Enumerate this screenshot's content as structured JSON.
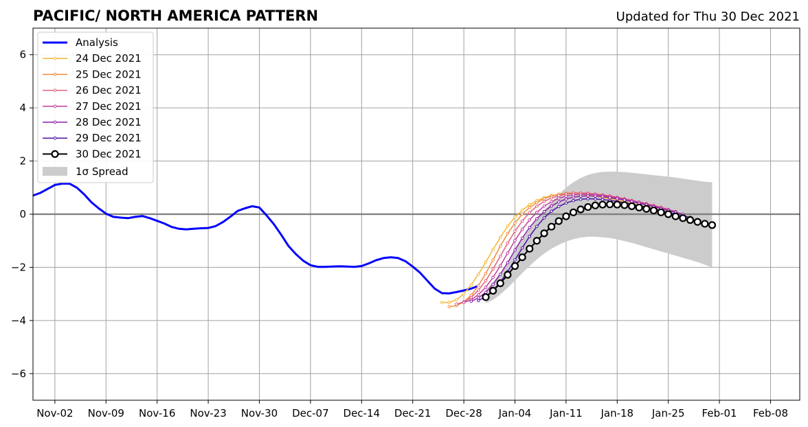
{
  "chart_data": {
    "type": "line",
    "title": "PACIFIC/ NORTH AMERICA PATTERN",
    "subtitle": "Updated for Thu 30 Dec 2021",
    "xlabel": "",
    "ylabel": "",
    "x_range": [
      "2021-10-30",
      "2022-02-12"
    ],
    "ylim": [
      -7,
      7
    ],
    "yticks": [
      -6,
      -4,
      -2,
      0,
      2,
      4,
      6
    ],
    "xticks": [
      {
        "date": "2021-11-02",
        "label": "Nov-02"
      },
      {
        "date": "2021-11-09",
        "label": "Nov-09"
      },
      {
        "date": "2021-11-16",
        "label": "Nov-16"
      },
      {
        "date": "2021-11-23",
        "label": "Nov-23"
      },
      {
        "date": "2021-11-30",
        "label": "Nov-30"
      },
      {
        "date": "2021-12-07",
        "label": "Dec-07"
      },
      {
        "date": "2021-12-14",
        "label": "Dec-14"
      },
      {
        "date": "2021-12-21",
        "label": "Dec-21"
      },
      {
        "date": "2021-12-28",
        "label": "Dec-28"
      },
      {
        "date": "2022-01-04",
        "label": "Jan-04"
      },
      {
        "date": "2022-01-11",
        "label": "Jan-11"
      },
      {
        "date": "2022-01-18",
        "label": "Jan-18"
      },
      {
        "date": "2022-01-25",
        "label": "Jan-25"
      },
      {
        "date": "2022-02-01",
        "label": "Feb-01"
      },
      {
        "date": "2022-02-08",
        "label": "Feb-08"
      }
    ],
    "grid": true,
    "zero_line": true,
    "legend_position": "upper-left",
    "analysis": {
      "name": "Analysis",
      "color": "#0000ff",
      "points": [
        [
          "2021-10-30",
          0.7
        ],
        [
          "2021-10-31",
          0.8
        ],
        [
          "2021-11-01",
          0.95
        ],
        [
          "2021-11-02",
          1.1
        ],
        [
          "2021-11-03",
          1.15
        ],
        [
          "2021-11-04",
          1.15
        ],
        [
          "2021-11-05",
          1.0
        ],
        [
          "2021-11-06",
          0.75
        ],
        [
          "2021-11-07",
          0.45
        ],
        [
          "2021-11-08",
          0.22
        ],
        [
          "2021-11-09",
          0.02
        ],
        [
          "2021-11-10",
          -0.1
        ],
        [
          "2021-11-11",
          -0.13
        ],
        [
          "2021-11-12",
          -0.15
        ],
        [
          "2021-11-13",
          -0.1
        ],
        [
          "2021-11-14",
          -0.07
        ],
        [
          "2021-11-15",
          -0.15
        ],
        [
          "2021-11-16",
          -0.25
        ],
        [
          "2021-11-17",
          -0.35
        ],
        [
          "2021-11-18",
          -0.48
        ],
        [
          "2021-11-19",
          -0.55
        ],
        [
          "2021-11-20",
          -0.57
        ],
        [
          "2021-11-21",
          -0.55
        ],
        [
          "2021-11-22",
          -0.53
        ],
        [
          "2021-11-23",
          -0.52
        ],
        [
          "2021-11-24",
          -0.45
        ],
        [
          "2021-11-25",
          -0.3
        ],
        [
          "2021-11-26",
          -0.1
        ],
        [
          "2021-11-27",
          0.12
        ],
        [
          "2021-11-28",
          0.22
        ],
        [
          "2021-11-29",
          0.3
        ],
        [
          "2021-11-30",
          0.25
        ],
        [
          "2021-12-01",
          -0.05
        ],
        [
          "2021-12-02",
          -0.38
        ],
        [
          "2021-12-03",
          -0.78
        ],
        [
          "2021-12-04",
          -1.2
        ],
        [
          "2021-12-05",
          -1.5
        ],
        [
          "2021-12-06",
          -1.75
        ],
        [
          "2021-12-07",
          -1.92
        ],
        [
          "2021-12-08",
          -1.98
        ],
        [
          "2021-12-09",
          -1.98
        ],
        [
          "2021-12-10",
          -1.97
        ],
        [
          "2021-12-11",
          -1.96
        ],
        [
          "2021-12-12",
          -1.97
        ],
        [
          "2021-12-13",
          -1.98
        ],
        [
          "2021-12-14",
          -1.95
        ],
        [
          "2021-12-15",
          -1.85
        ],
        [
          "2021-12-16",
          -1.73
        ],
        [
          "2021-12-17",
          -1.65
        ],
        [
          "2021-12-18",
          -1.62
        ],
        [
          "2021-12-19",
          -1.65
        ],
        [
          "2021-12-20",
          -1.77
        ],
        [
          "2021-12-21",
          -1.97
        ],
        [
          "2021-12-22",
          -2.2
        ],
        [
          "2021-12-23",
          -2.5
        ],
        [
          "2021-12-24",
          -2.8
        ],
        [
          "2021-12-25",
          -2.97
        ],
        [
          "2021-12-26",
          -2.98
        ],
        [
          "2021-12-27",
          -2.93
        ],
        [
          "2021-12-28",
          -2.87
        ],
        [
          "2021-12-29",
          -2.8
        ],
        [
          "2021-12-30",
          -2.7
        ]
      ]
    },
    "series": [
      {
        "name": "24 Dec 2021",
        "color": "#f5b731",
        "start": "2021-12-25",
        "values": [
          -3.32,
          -3.32,
          -3.22,
          -2.99,
          -2.66,
          -2.26,
          -1.8,
          -1.33,
          -0.87,
          -0.45,
          -0.11,
          0.15,
          0.36,
          0.51,
          0.62,
          0.7,
          0.75,
          0.77,
          0.77,
          0.75,
          0.72,
          0.68,
          0.63,
          0.58,
          0.53,
          0.47,
          0.41,
          0.35,
          0.29,
          0.22
        ]
      },
      {
        "name": "25 Dec 2021",
        "color": "#ef8a3c",
        "start": "2021-12-26",
        "values": [
          -3.48,
          -3.44,
          -3.3,
          -3.05,
          -2.69,
          -2.23,
          -1.72,
          -1.2,
          -0.73,
          -0.33,
          0.0,
          0.25,
          0.44,
          0.58,
          0.68,
          0.75,
          0.79,
          0.8,
          0.79,
          0.77,
          0.74,
          0.7,
          0.65,
          0.6,
          0.54,
          0.48,
          0.42,
          0.36,
          0.3,
          0.24
        ]
      },
      {
        "name": "26 Dec 2021",
        "color": "#e0607e",
        "start": "2021-12-27",
        "values": [
          -3.38,
          -3.3,
          -3.13,
          -2.86,
          -2.5,
          -2.06,
          -1.58,
          -1.09,
          -0.64,
          -0.26,
          0.06,
          0.3,
          0.48,
          0.61,
          0.7,
          0.76,
          0.79,
          0.8,
          0.79,
          0.76,
          0.73,
          0.69,
          0.64,
          0.58,
          0.52,
          0.46,
          0.4,
          0.33,
          0.26,
          0.18
        ]
      },
      {
        "name": "27 Dec 2021",
        "color": "#c23b9b",
        "start": "2021-12-28",
        "values": [
          -3.32,
          -3.22,
          -3.03,
          -2.75,
          -2.38,
          -1.94,
          -1.46,
          -0.99,
          -0.57,
          -0.22,
          0.07,
          0.3,
          0.47,
          0.6,
          0.68,
          0.73,
          0.75,
          0.75,
          0.73,
          0.7,
          0.66,
          0.61,
          0.56,
          0.51,
          0.45,
          0.38,
          0.31,
          0.24,
          0.17,
          0.1
        ]
      },
      {
        "name": "28 Dec 2021",
        "color": "#8a1fa8",
        "start": "2021-12-29",
        "values": [
          -3.28,
          -3.15,
          -2.94,
          -2.64,
          -2.26,
          -1.82,
          -1.35,
          -0.9,
          -0.5,
          -0.17,
          0.1,
          0.31,
          0.46,
          0.57,
          0.64,
          0.68,
          0.69,
          0.68,
          0.66,
          0.62,
          0.58,
          0.53,
          0.47,
          0.41,
          0.35,
          0.28,
          0.21,
          0.14,
          0.07,
          0.0
        ]
      },
      {
        "name": "29 Dec 2021",
        "color": "#4b0fa5",
        "start": "2021-12-30",
        "values": [
          -3.25,
          -3.1,
          -2.87,
          -2.55,
          -2.16,
          -1.72,
          -1.27,
          -0.84,
          -0.46,
          -0.14,
          0.11,
          0.29,
          0.42,
          0.51,
          0.56,
          0.58,
          0.57,
          0.55,
          0.52,
          0.48,
          0.43,
          0.38,
          0.32,
          0.26,
          0.2,
          0.14,
          0.07,
          0.0,
          -0.06,
          -0.12
        ]
      },
      {
        "name": "30 Dec 2021",
        "color": "#000000",
        "start": "2021-12-31",
        "values": [
          -3.12,
          -2.88,
          -2.6,
          -2.28,
          -1.95,
          -1.62,
          -1.3,
          -1.0,
          -0.72,
          -0.47,
          -0.26,
          -0.08,
          0.07,
          0.18,
          0.27,
          0.33,
          0.36,
          0.37,
          0.36,
          0.34,
          0.3,
          0.25,
          0.2,
          0.14,
          0.07,
          0.0,
          -0.08,
          -0.15,
          -0.22,
          -0.29,
          -0.36,
          -0.41
        ]
      }
    ],
    "spread": {
      "name": "1σ Spread",
      "color": "#cccccc",
      "start": "2021-12-31",
      "lower": [
        -3.35,
        -3.22,
        -3.02,
        -2.77,
        -2.5,
        -2.22,
        -1.95,
        -1.7,
        -1.48,
        -1.3,
        -1.15,
        -1.03,
        -0.94,
        -0.88,
        -0.85,
        -0.85,
        -0.87,
        -0.9,
        -0.95,
        -1.01,
        -1.08,
        -1.16,
        -1.24,
        -1.32,
        -1.4,
        -1.48,
        -1.56,
        -1.64,
        -1.72,
        -1.8,
        -1.9,
        -2.0
      ],
      "upper": [
        -2.85,
        -2.55,
        -2.2,
        -1.8,
        -1.38,
        -0.95,
        -0.55,
        -0.18,
        0.15,
        0.45,
        0.75,
        1.0,
        1.2,
        1.36,
        1.48,
        1.55,
        1.59,
        1.6,
        1.6,
        1.58,
        1.56,
        1.53,
        1.5,
        1.47,
        1.44,
        1.41,
        1.38,
        1.34,
        1.3,
        1.26,
        1.22,
        1.2
      ]
    }
  }
}
